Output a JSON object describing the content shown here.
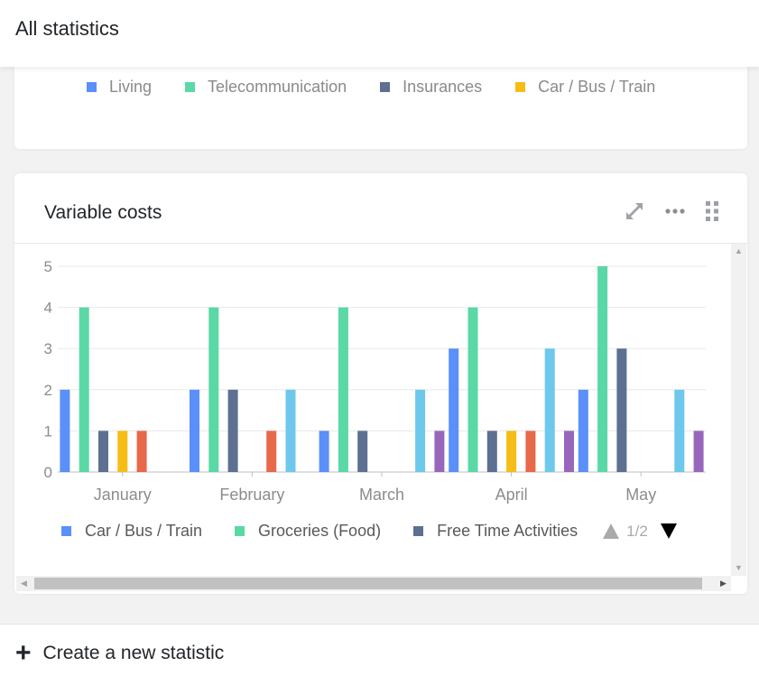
{
  "header": {
    "title": "All statistics"
  },
  "fixed_costs_legend": [
    {
      "label": "Living",
      "color": "#5b8ff9"
    },
    {
      "label": "Telecommunication",
      "color": "#5ad8a6"
    },
    {
      "label": "Insurances",
      "color": "#5d7092"
    },
    {
      "label": "Car / Bus / Train",
      "color": "#f6bd16"
    }
  ],
  "variable_card": {
    "title": "Variable costs",
    "tools": {
      "expand": "expand-icon",
      "more": "more-icon",
      "drag": "drag-handle-icon"
    }
  },
  "chart_data": {
    "type": "bar",
    "categories": [
      "January",
      "February",
      "March",
      "April",
      "May"
    ],
    "ylim": [
      0,
      5
    ],
    "yticks": [
      0,
      1,
      2,
      3,
      4,
      5
    ],
    "grid": true,
    "legend_position": "bottom",
    "series": [
      {
        "name": "Car / Bus / Train",
        "color": "#5b8ff9",
        "values": [
          2,
          2,
          1,
          3,
          2
        ]
      },
      {
        "name": "Groceries (Food)",
        "color": "#5ad8a6",
        "values": [
          4,
          4,
          4,
          4,
          5
        ]
      },
      {
        "name": "Free Time Activities",
        "color": "#5d7092",
        "values": [
          1,
          2,
          1,
          1,
          3
        ]
      },
      {
        "color": "#f6bd16",
        "values": [
          1,
          0,
          0,
          1,
          0
        ]
      },
      {
        "color": "#e8684a",
        "values": [
          1,
          1,
          0,
          1,
          0
        ]
      },
      {
        "color": "#6dc8ec",
        "values": [
          0,
          2,
          2,
          3,
          2
        ]
      },
      {
        "color": "#9867bc",
        "values": [
          0,
          0,
          1,
          1,
          1
        ]
      }
    ]
  },
  "legend_pager": {
    "text": "1/2"
  },
  "footer": {
    "create_label": "Create a new statistic"
  }
}
